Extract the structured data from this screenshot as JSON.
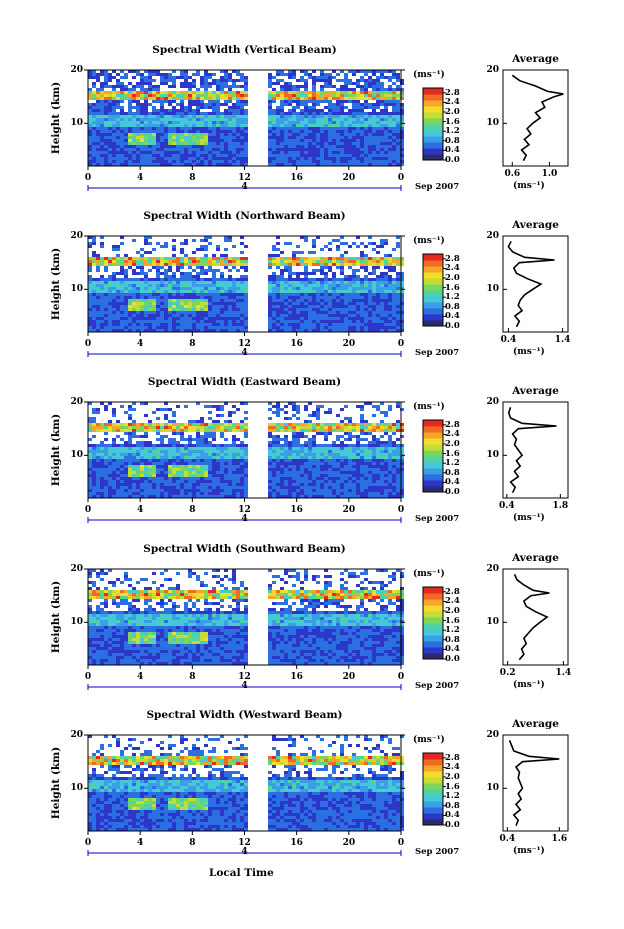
{
  "common": {
    "date_label": "Sep 2007",
    "day_label": "4",
    "x_ticks": [
      "0",
      "4",
      "8",
      "12",
      "16",
      "20",
      "0"
    ],
    "y_ticks": [
      "20",
      "10"
    ],
    "ylabel": "Height (km)",
    "unit": "(ms⁻¹)",
    "colorbar_ticks": [
      "2.8",
      "2.4",
      "2.0",
      "1.6",
      "1.2",
      "0.8",
      "0.4",
      "0.0"
    ],
    "avg_title": "Average",
    "avg_unit": "(ms⁻¹)",
    "xlabel": "Local Time"
  },
  "colors": {
    "axis": "#000000",
    "day_marker": "#0000cc"
  },
  "chart_data": [
    {
      "type": "heatmap",
      "title": "Spectral Width (Vertical Beam)",
      "x_range_hours": [
        0,
        24
      ],
      "y_range_km": [
        2,
        20
      ],
      "data_gap_hours": [
        12,
        13.7
      ],
      "colorbar_range": [
        0.0,
        3.0
      ],
      "average_profile": {
        "title": "Average",
        "xlim": [
          0.5,
          1.2
        ],
        "x_ticks": [
          "0.6",
          "1.0"
        ],
        "heights_km": [
          3,
          4,
          5,
          6,
          7,
          8,
          9,
          10,
          11,
          12,
          13,
          14,
          15,
          15.5,
          16,
          17,
          18,
          19
        ],
        "values": [
          0.72,
          0.75,
          0.7,
          0.78,
          0.73,
          0.8,
          0.76,
          0.82,
          0.9,
          0.85,
          0.95,
          0.92,
          1.05,
          1.15,
          0.98,
          0.85,
          0.68,
          0.6
        ]
      }
    },
    {
      "type": "heatmap",
      "title": "Spectral Width (Northward Beam)",
      "x_range_hours": [
        0,
        24
      ],
      "y_range_km": [
        2,
        20
      ],
      "data_gap_hours": [
        12,
        13.7
      ],
      "colorbar_range": [
        0.0,
        3.0
      ],
      "average_profile": {
        "title": "Average",
        "xlim": [
          0.3,
          1.5
        ],
        "x_ticks": [
          "0.4",
          "1.4"
        ],
        "heights_km": [
          3,
          4,
          5,
          6,
          7,
          8,
          9,
          10,
          11,
          12,
          13,
          14,
          15,
          15.5,
          16,
          17,
          18,
          19
        ],
        "values": [
          0.55,
          0.6,
          0.52,
          0.65,
          0.58,
          0.62,
          0.7,
          0.85,
          1.0,
          0.75,
          0.55,
          0.5,
          0.6,
          1.25,
          0.7,
          0.48,
          0.4,
          0.45
        ]
      }
    },
    {
      "type": "heatmap",
      "title": "Spectral Width (Eastward Beam)",
      "x_range_hours": [
        0,
        24
      ],
      "y_range_km": [
        2,
        20
      ],
      "data_gap_hours": [
        12,
        13.7
      ],
      "colorbar_range": [
        0.0,
        3.0
      ],
      "average_profile": {
        "title": "Average",
        "xlim": [
          0.3,
          2.0
        ],
        "x_ticks": [
          "0.4",
          "1.8"
        ],
        "heights_km": [
          3,
          4,
          5,
          6,
          7,
          8,
          9,
          10,
          11,
          12,
          13,
          14,
          15,
          15.5,
          16,
          17,
          18,
          19
        ],
        "values": [
          0.55,
          0.62,
          0.5,
          0.7,
          0.6,
          0.75,
          0.65,
          0.8,
          0.7,
          0.6,
          0.65,
          0.55,
          0.7,
          1.7,
          0.8,
          0.5,
          0.45,
          0.5
        ]
      }
    },
    {
      "type": "heatmap",
      "title": "Spectral Width (Southward Beam)",
      "x_range_hours": [
        0,
        24
      ],
      "y_range_km": [
        2,
        20
      ],
      "data_gap_hours": [
        12,
        13.7
      ],
      "colorbar_range": [
        0.0,
        3.0
      ],
      "average_profile": {
        "title": "Average",
        "xlim": [
          0.1,
          1.5
        ],
        "x_ticks": [
          "0.2",
          "1.4"
        ],
        "heights_km": [
          3,
          4,
          5,
          6,
          7,
          8,
          9,
          10,
          11,
          12,
          13,
          14,
          15,
          15.5,
          16,
          17,
          18,
          19
        ],
        "values": [
          0.45,
          0.55,
          0.5,
          0.6,
          0.55,
          0.65,
          0.75,
          0.9,
          1.05,
          0.8,
          0.6,
          0.55,
          0.7,
          1.1,
          0.75,
          0.55,
          0.4,
          0.35
        ]
      }
    },
    {
      "type": "heatmap",
      "title": "Spectral Width (Westward Beam)",
      "x_range_hours": [
        0,
        24
      ],
      "y_range_km": [
        2,
        20
      ],
      "data_gap_hours": [
        12,
        13.7
      ],
      "colorbar_range": [
        0.0,
        3.0
      ],
      "average_profile": {
        "title": "Average",
        "xlim": [
          0.3,
          1.8
        ],
        "x_ticks": [
          "0.4",
          "1.6"
        ],
        "heights_km": [
          3,
          4,
          5,
          6,
          7,
          8,
          9,
          10,
          11,
          12,
          13,
          14,
          15,
          15.5,
          16,
          17,
          18,
          19
        ],
        "values": [
          0.6,
          0.65,
          0.55,
          0.7,
          0.6,
          0.72,
          0.65,
          0.75,
          0.7,
          0.65,
          0.68,
          0.6,
          0.75,
          1.6,
          0.9,
          0.55,
          0.5,
          0.45
        ]
      }
    }
  ]
}
